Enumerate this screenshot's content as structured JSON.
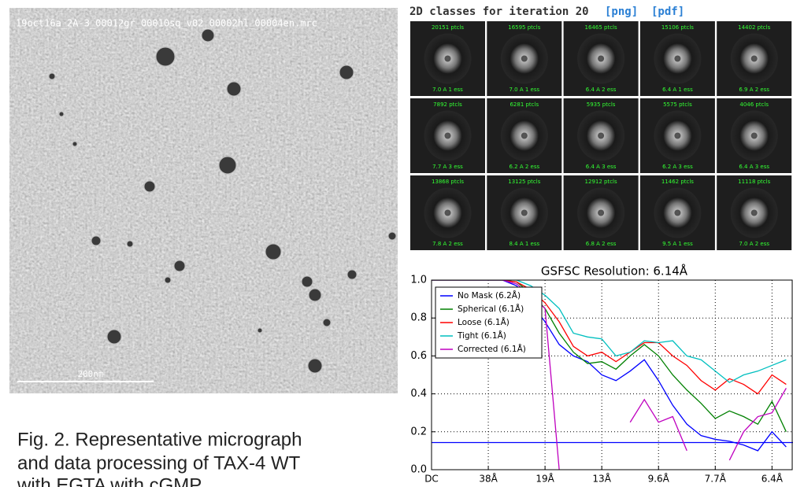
{
  "micrograph": {
    "filename": "19oct16a_2A-3_00012gr_00010sq_v02_00002hl_00004en.mrc",
    "scale_bar": "200nm"
  },
  "caption": [
    "Fig. 2. Representative micrograph",
    "and data processing of TAX-4 WT",
    "with EGTA with cGMP"
  ],
  "classes": {
    "heading": "2D classes for iteration 20",
    "links": [
      "[png]",
      "[pdf]"
    ],
    "tiles": [
      {
        "particles": "20151 ptcls",
        "resolution": "7.0 A 1 ess"
      },
      {
        "particles": "16595 ptcls",
        "resolution": "7.0 A 1 ess"
      },
      {
        "particles": "16465 ptcls",
        "resolution": "6.4 A 2 ess"
      },
      {
        "particles": "15106 ptcls",
        "resolution": "6.4 A 1 ess"
      },
      {
        "particles": "14402 ptcls",
        "resolution": "6.9 A 2 ess"
      },
      {
        "particles": "7892 ptcls",
        "resolution": "7.7 A 3 ess"
      },
      {
        "particles": "6281 ptcls",
        "resolution": "6.2 A 2 ess"
      },
      {
        "particles": "5935 ptcls",
        "resolution": "6.4 A 3 ess"
      },
      {
        "particles": "5575 ptcls",
        "resolution": "6.2 A 3 ess"
      },
      {
        "particles": "4046 ptcls",
        "resolution": "6.4 A 3 ess"
      },
      {
        "particles": "13868 ptcls",
        "resolution": "7.8 A 2 ess"
      },
      {
        "particles": "13125 ptcls",
        "resolution": "8.4 A 1 ess"
      },
      {
        "particles": "12912 ptcls",
        "resolution": "6.8 A 2 ess"
      },
      {
        "particles": "11462 ptcls",
        "resolution": "9.5 A 1 ess"
      },
      {
        "particles": "11118 ptcls",
        "resolution": "7.0 A 2 ess"
      }
    ]
  },
  "chart_data": {
    "type": "line",
    "title": "GSFSC Resolution: 6.14Å",
    "x": [
      0,
      0.25,
      0.5,
      0.75,
      1,
      1.25,
      1.5,
      1.75,
      2,
      2.25,
      2.5,
      2.75,
      3,
      3.25,
      3.5,
      3.75,
      4,
      4.25,
      4.5,
      4.75,
      5,
      5.25,
      5.5,
      5.75,
      6,
      6.25
    ],
    "series": [
      {
        "name": "No Mask (6.2Å)",
        "color": "#0000ff",
        "values": [
          1.0,
          1.0,
          1.0,
          1.0,
          1.0,
          1.0,
          0.97,
          0.88,
          0.78,
          0.66,
          0.6,
          0.57,
          0.5,
          0.47,
          0.52,
          0.58,
          0.47,
          0.34,
          0.24,
          0.18,
          0.16,
          0.15,
          0.13,
          0.1,
          0.2,
          0.12
        ]
      },
      {
        "name": "Spherical (6.1Å)",
        "color": "#008000",
        "values": [
          1.0,
          1.0,
          1.0,
          1.0,
          1.0,
          1.0,
          0.99,
          0.93,
          0.85,
          0.72,
          0.62,
          0.56,
          0.57,
          0.53,
          0.6,
          0.66,
          0.6,
          0.5,
          0.42,
          0.35,
          0.27,
          0.31,
          0.28,
          0.24,
          0.36,
          0.2
        ]
      },
      {
        "name": "Loose (6.1Å)",
        "color": "#ff0000",
        "values": [
          1.0,
          1.0,
          1.0,
          1.0,
          1.0,
          1.0,
          0.99,
          0.95,
          0.88,
          0.78,
          0.65,
          0.6,
          0.62,
          0.57,
          0.62,
          0.67,
          0.67,
          0.6,
          0.55,
          0.47,
          0.42,
          0.48,
          0.45,
          0.4,
          0.5,
          0.45
        ]
      },
      {
        "name": "Tight (6.1Å)",
        "color": "#00bfbf",
        "values": [
          1.0,
          1.0,
          1.0,
          1.0,
          1.0,
          1.0,
          1.0,
          0.97,
          0.92,
          0.85,
          0.72,
          0.7,
          0.69,
          0.6,
          0.62,
          0.68,
          0.67,
          0.68,
          0.6,
          0.58,
          0.52,
          0.46,
          0.5,
          0.52,
          0.55,
          0.58
        ]
      },
      {
        "name": "Corrected (6.1Å)",
        "color": "#bf00bf",
        "values": [
          1.0,
          1.0,
          1.0,
          1.0,
          1.0,
          1.0,
          0.98,
          0.92,
          0.85,
          0.0,
          null,
          null,
          null,
          null,
          0.25,
          0.37,
          0.25,
          0.28,
          0.1,
          null,
          null,
          0.05,
          0.2,
          0.28,
          0.3,
          0.43
        ]
      }
    ],
    "threshold": 0.143,
    "threshold_color": "#0000ff",
    "xlim": [
      0,
      6.37
    ],
    "ylim": [
      0,
      1
    ],
    "xticks": [
      {
        "value": 0,
        "label": "DC"
      },
      {
        "value": 1,
        "label": "38Å"
      },
      {
        "value": 2,
        "label": "19Å"
      },
      {
        "value": 3,
        "label": "13Å"
      },
      {
        "value": 4,
        "label": "9.6Å"
      },
      {
        "value": 5,
        "label": "7.7Å"
      },
      {
        "value": 6,
        "label": "6.4Å"
      }
    ],
    "yticks": [
      {
        "value": 0,
        "label": "0.0"
      },
      0.2,
      0.4,
      0.6,
      0.8,
      {
        "value": 1,
        "label": "1.0"
      }
    ],
    "grid": true,
    "legend": "upper left"
  }
}
